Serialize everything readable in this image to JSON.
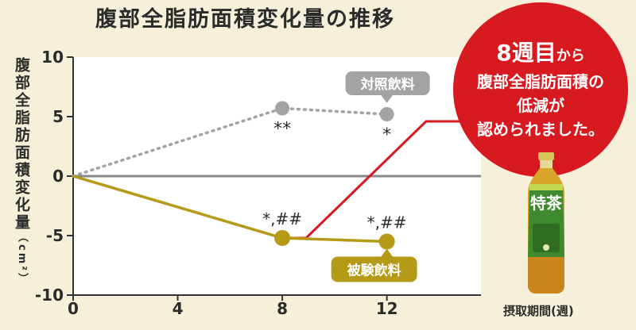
{
  "title": "腹部全脂肪面積変化量の推移",
  "y_axis_label": "腹部全脂肪面積変化量",
  "y_axis_unit": "（cm²）",
  "promo": {
    "line1_big": "8週目",
    "line1_small": "から",
    "line2": "腹部全脂肪面積の",
    "line3": "低減が",
    "line4": "認められました。"
  },
  "product_label": "特茶",
  "colors": {
    "background": "#f6efd9",
    "control": "#a3a3a3",
    "test": "#b59a17",
    "highlight": "#d71920",
    "zero_line": "#888888"
  },
  "chart_data": {
    "type": "line",
    "xlabel": "摂取期間(週)",
    "ylabel": "腹部全脂肪面積変化量（cm²）",
    "xticks": [
      "0",
      "4",
      "8",
      "12"
    ],
    "yticks": [
      "10",
      "5",
      "0",
      "-5",
      "-10"
    ],
    "xlim": [
      0,
      16
    ],
    "ylim": [
      -10,
      10
    ],
    "series": [
      {
        "name": "対照飲料",
        "x": [
          0,
          8,
          12
        ],
        "y": [
          0,
          5.7,
          5.2
        ],
        "annotations": [
          "",
          "**",
          "*"
        ]
      },
      {
        "name": "被験飲料",
        "x": [
          0,
          8,
          12
        ],
        "y": [
          0,
          -5.2,
          -5.5
        ],
        "annotations": [
          "",
          "*,##",
          "*,##"
        ]
      }
    ]
  }
}
